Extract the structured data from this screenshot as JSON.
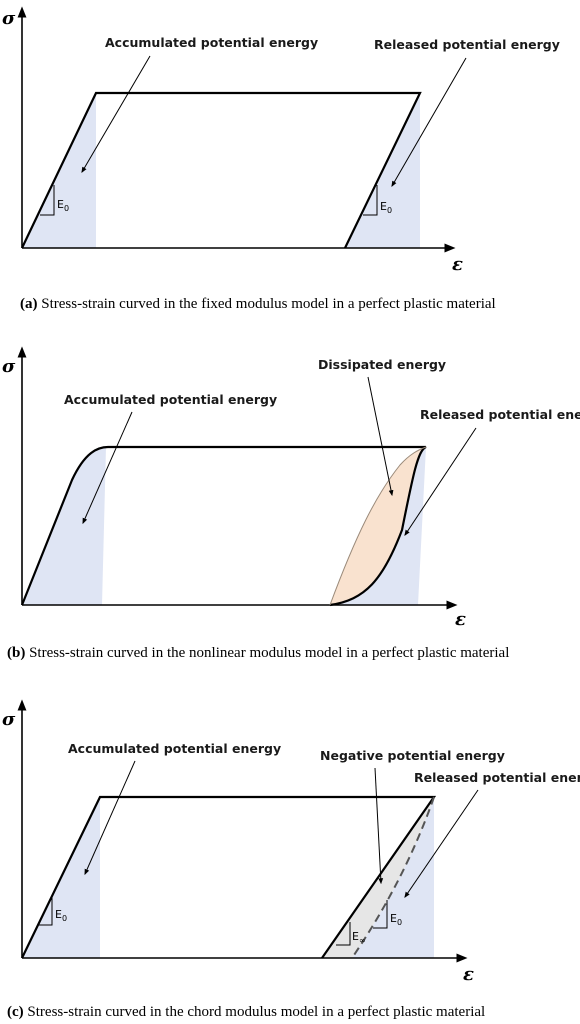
{
  "axes": {
    "stress_symbol": "σ",
    "strain_symbol": "ε"
  },
  "panel_a": {
    "label_accumulated": "Accumulated potential energy",
    "label_released": "Released potential energy",
    "modulus_left": {
      "main": "E",
      "sub": "0"
    },
    "modulus_right": {
      "main": "E",
      "sub": "0"
    },
    "caption_key": "(a)",
    "caption_text": " Stress-strain curved in the fixed modulus model in a perfect plastic material"
  },
  "panel_b": {
    "label_dissipated": "Dissipated energy",
    "label_accumulated": "Accumulated potential energy",
    "label_released": "Released potential energy",
    "caption_key": "(b)",
    "caption_text": " Stress-strain curved in the nonlinear modulus model in a perfect plastic material"
  },
  "panel_c": {
    "label_accumulated": "Accumulated potential energy",
    "label_negative": "Negative potential energy",
    "label_released": "Released potential energy",
    "modulus_chord": {
      "main": "E",
      "sub": "∞"
    },
    "modulus_right": {
      "main": "E",
      "sub": "0"
    },
    "caption_key": "(c)",
    "caption_text": " Stress-strain curved in the chord modulus model in a perfect plastic material"
  },
  "colors": {
    "energy_fill": "#dfe5f4",
    "dissipated_fill": "#f9e2cf",
    "negative_fill": "#e6e6e6"
  }
}
